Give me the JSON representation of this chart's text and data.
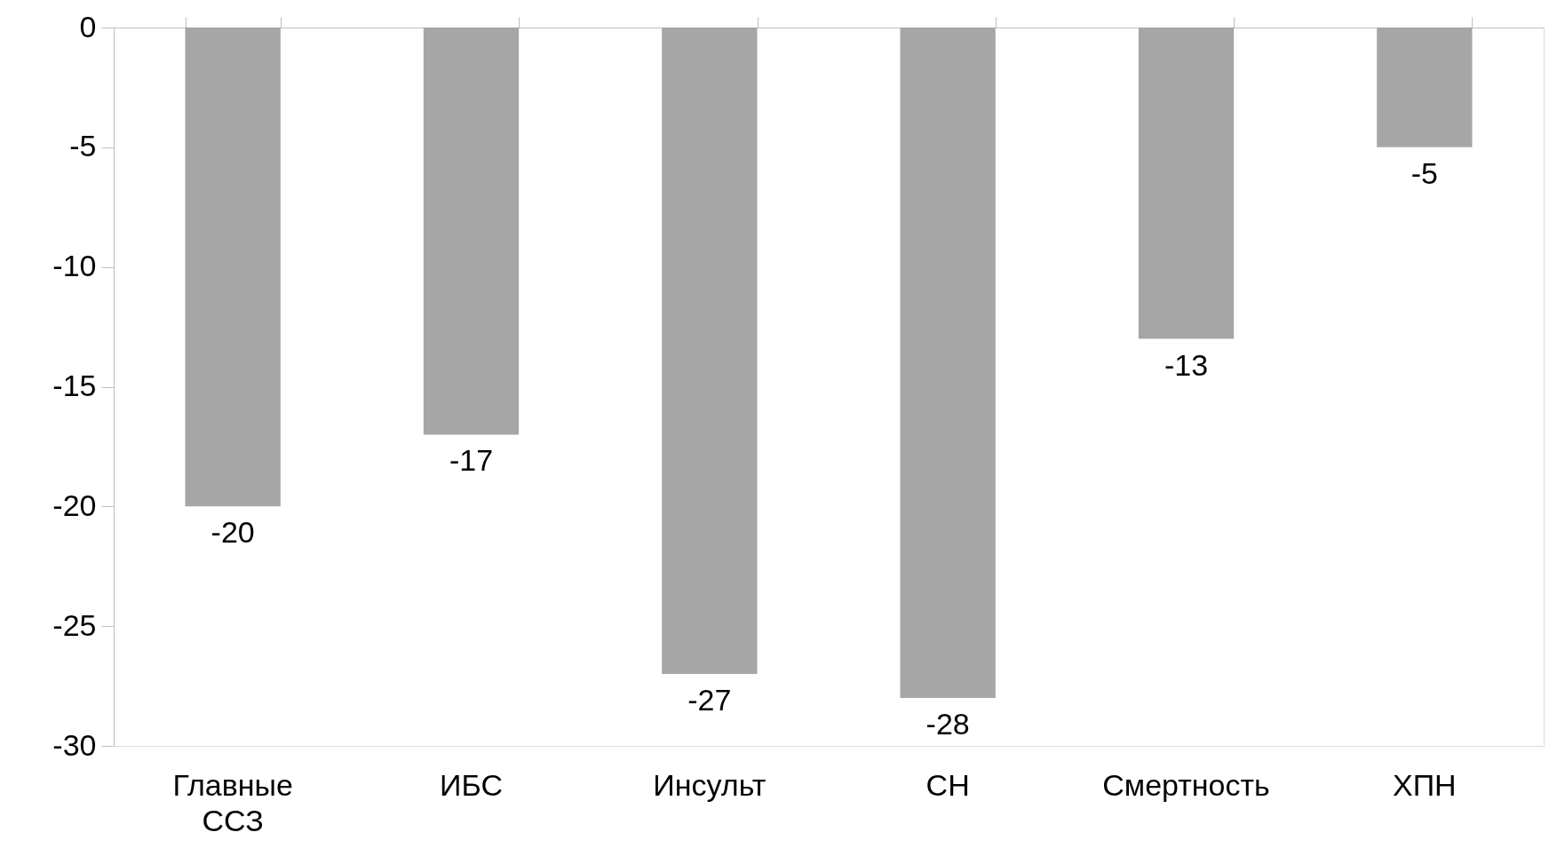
{
  "chart_data": {
    "type": "bar",
    "categories": [
      "Главные ССЗ",
      "ИБС",
      "Инсульт",
      "СН",
      "Смертность",
      "ХПН"
    ],
    "values": [
      -20,
      -17,
      -27,
      -28,
      -13,
      -5
    ],
    "color": "#a6a6a6",
    "ylim": [
      -30,
      0
    ],
    "yticks": [
      0,
      -5,
      -10,
      -15,
      -20,
      -25,
      -30
    ],
    "data_labels": true
  }
}
